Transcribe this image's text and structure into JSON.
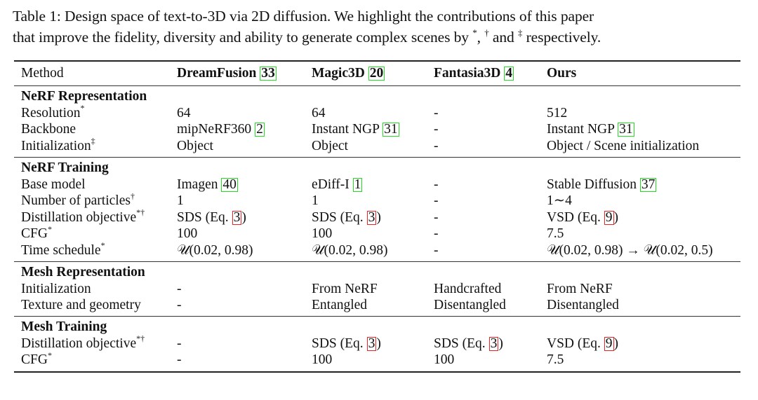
{
  "caption": {
    "line1": "Table 1: Design space of text-to-3D via 2D diffusion. We highlight the contributions of this paper",
    "line2_pre": "that improve the fidelity, diversity and ability to generate complex scenes by ",
    "mark1": "*",
    "sep1": ", ",
    "mark2": "†",
    "sep2": " and ",
    "mark3": "‡",
    "line2_post": " respectively."
  },
  "table": {
    "headers": [
      {
        "text": "Method",
        "cite": ""
      },
      {
        "text": "DreamFusion ",
        "cite": "33"
      },
      {
        "text": "Magic3D ",
        "cite": "20"
      },
      {
        "text": "Fantasia3D ",
        "cite": "4"
      },
      {
        "text": "Ours",
        "cite": ""
      }
    ],
    "sections": [
      {
        "title": "NeRF Representation",
        "rows": [
          {
            "label": "Resolution",
            "mark": "*",
            "cells": [
              {
                "pre": "64"
              },
              {
                "pre": "64"
              },
              {
                "pre": "-"
              },
              {
                "pre": "512"
              }
            ]
          },
          {
            "label": "Backbone",
            "mark": "",
            "cells": [
              {
                "pre": "mipNeRF360 ",
                "cite": "2",
                "citeColor": "g"
              },
              {
                "pre": "Instant NGP ",
                "cite": "31",
                "citeColor": "g"
              },
              {
                "pre": "-"
              },
              {
                "pre": "Instant NGP ",
                "cite": "31",
                "citeColor": "g"
              }
            ]
          },
          {
            "label": "Initialization",
            "mark": "‡",
            "cells": [
              {
                "pre": "Object"
              },
              {
                "pre": "Object"
              },
              {
                "pre": "-"
              },
              {
                "pre": "Object / Scene initialization"
              }
            ]
          }
        ]
      },
      {
        "title": "NeRF Training",
        "rows": [
          {
            "label": "Base model",
            "mark": "",
            "cells": [
              {
                "pre": "Imagen ",
                "cite": "40",
                "citeColor": "g"
              },
              {
                "pre": "eDiff-I ",
                "cite": "1",
                "citeColor": "g"
              },
              {
                "pre": "-"
              },
              {
                "pre": "Stable Diffusion ",
                "cite": "37",
                "citeColor": "g"
              }
            ]
          },
          {
            "label": "Number of particles",
            "mark": "†",
            "cells": [
              {
                "pre": "1"
              },
              {
                "pre": "1"
              },
              {
                "pre": "-"
              },
              {
                "pre": "1∼4"
              }
            ]
          },
          {
            "label": "Distillation objective",
            "mark": "*†",
            "cells": [
              {
                "pre": "SDS (Eq. ",
                "cite": "3",
                "citeColor": "r",
                "post": ")"
              },
              {
                "pre": "SDS (Eq. ",
                "cite": "3",
                "citeColor": "r",
                "post": ")"
              },
              {
                "pre": "-"
              },
              {
                "pre": "VSD (Eq. ",
                "cite": "9",
                "citeColor": "r",
                "post": ")"
              }
            ]
          },
          {
            "label": "CFG",
            "mark": "*",
            "cells": [
              {
                "pre": "100"
              },
              {
                "pre": "100"
              },
              {
                "pre": "-"
              },
              {
                "pre": "7.5"
              }
            ]
          },
          {
            "label": "Time schedule",
            "mark": "*",
            "cells": [
              {
                "pre": "𝒰(0.02, 0.98)"
              },
              {
                "pre": "𝒰(0.02, 0.98)"
              },
              {
                "pre": "-"
              },
              {
                "pre": "𝒰(0.02, 0.98) → 𝒰(0.02, 0.5)"
              }
            ]
          }
        ]
      },
      {
        "title": "Mesh Representation",
        "rows": [
          {
            "label": "Initialization",
            "mark": "",
            "cells": [
              {
                "pre": "-"
              },
              {
                "pre": "From NeRF"
              },
              {
                "pre": "Handcrafted"
              },
              {
                "pre": "From NeRF"
              }
            ]
          },
          {
            "label": "Texture and geometry",
            "mark": "",
            "cells": [
              {
                "pre": "-"
              },
              {
                "pre": "Entangled"
              },
              {
                "pre": "Disentangled"
              },
              {
                "pre": "Disentangled"
              }
            ]
          }
        ]
      },
      {
        "title": "Mesh Training",
        "rows": [
          {
            "label": "Distillation objective",
            "mark": "*†",
            "cells": [
              {
                "pre": "-"
              },
              {
                "pre": "SDS (Eq. ",
                "cite": "3",
                "citeColor": "r",
                "post": ")"
              },
              {
                "pre": "SDS (Eq. ",
                "cite": "3",
                "citeColor": "r",
                "post": ")"
              },
              {
                "pre": "VSD (Eq. ",
                "cite": "9",
                "citeColor": "r",
                "post": ")"
              }
            ]
          },
          {
            "label": "CFG",
            "mark": "*",
            "cells": [
              {
                "pre": "-"
              },
              {
                "pre": "100"
              },
              {
                "pre": "100"
              },
              {
                "pre": "7.5"
              }
            ]
          }
        ]
      }
    ]
  }
}
